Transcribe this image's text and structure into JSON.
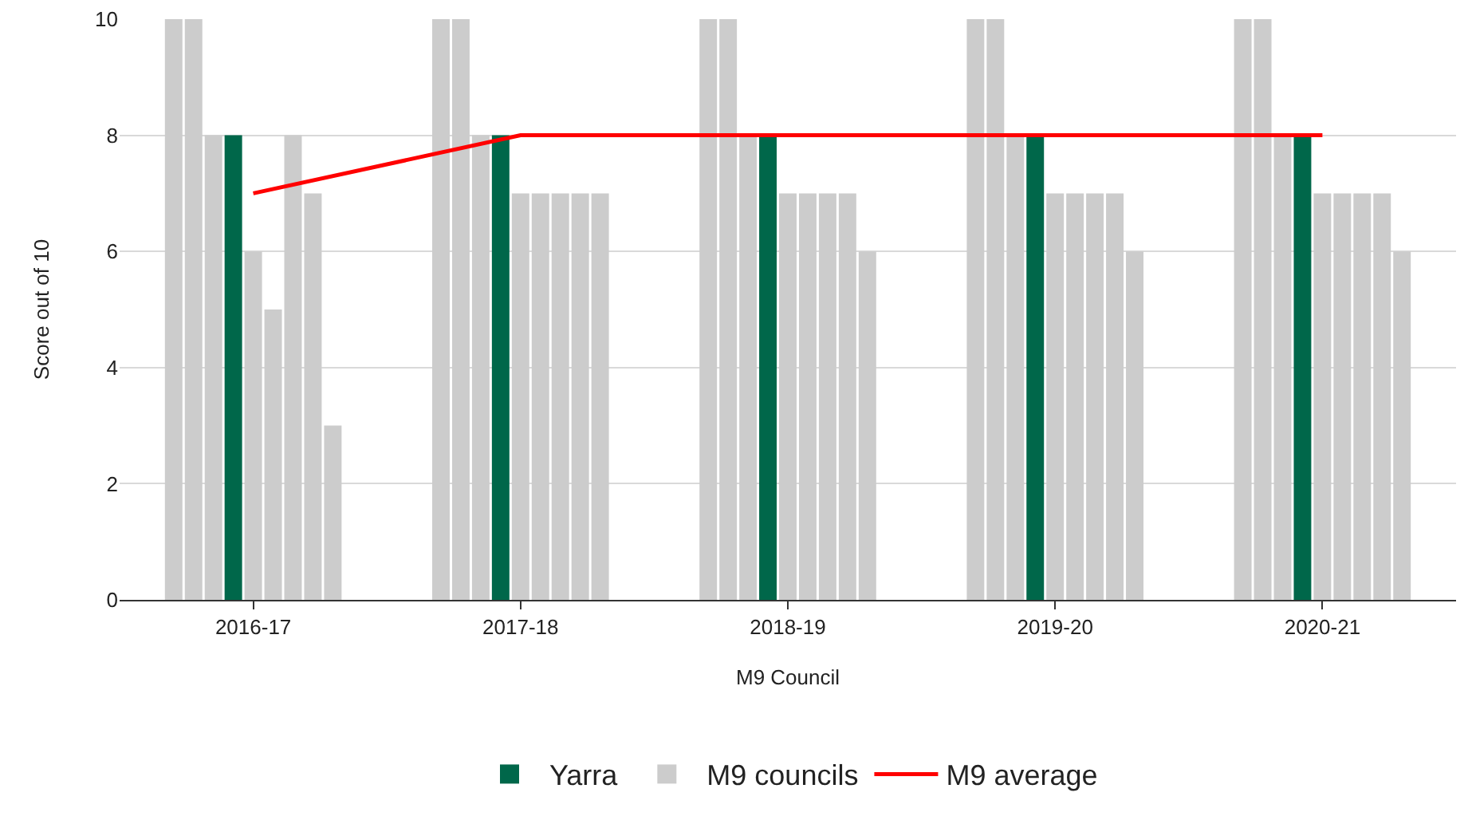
{
  "chart_data": {
    "type": "bar",
    "xlabel": "M9 Council",
    "ylabel": "Score out of 10",
    "categories": [
      "2016-17",
      "2017-18",
      "2018-19",
      "2019-20",
      "2020-21"
    ],
    "series": [
      {
        "color": "#cccccc",
        "values": [
          10,
          10,
          10,
          10,
          10
        ]
      },
      {
        "color": "#cccccc",
        "values": [
          10,
          10,
          10,
          10,
          10
        ]
      },
      {
        "name": "M9 councils",
        "color": "#cccccc",
        "values": [
          8,
          8,
          8,
          8,
          8
        ]
      },
      {
        "name": "Yarra",
        "color": "#00674a",
        "values": [
          8,
          8,
          8,
          8,
          8
        ]
      },
      {
        "color": "#cccccc",
        "values": [
          6,
          7,
          7,
          7,
          7
        ]
      },
      {
        "color": "#cccccc",
        "values": [
          5,
          7,
          7,
          7,
          7
        ]
      },
      {
        "color": "#cccccc",
        "values": [
          8,
          7,
          7,
          7,
          7
        ]
      },
      {
        "color": "#cccccc",
        "values": [
          7,
          7,
          7,
          7,
          7
        ]
      },
      {
        "color": "#cccccc",
        "values": [
          3,
          7,
          6,
          6,
          6
        ]
      },
      {
        "type": "line",
        "name": "M9 average",
        "color": "#ff0000",
        "values": [
          7,
          8,
          8,
          8,
          8
        ]
      }
    ],
    "ylim": [
      0,
      10
    ],
    "yticks": [
      0,
      2,
      4,
      6,
      8,
      10
    ],
    "grid": "y",
    "legend": "bottom"
  }
}
